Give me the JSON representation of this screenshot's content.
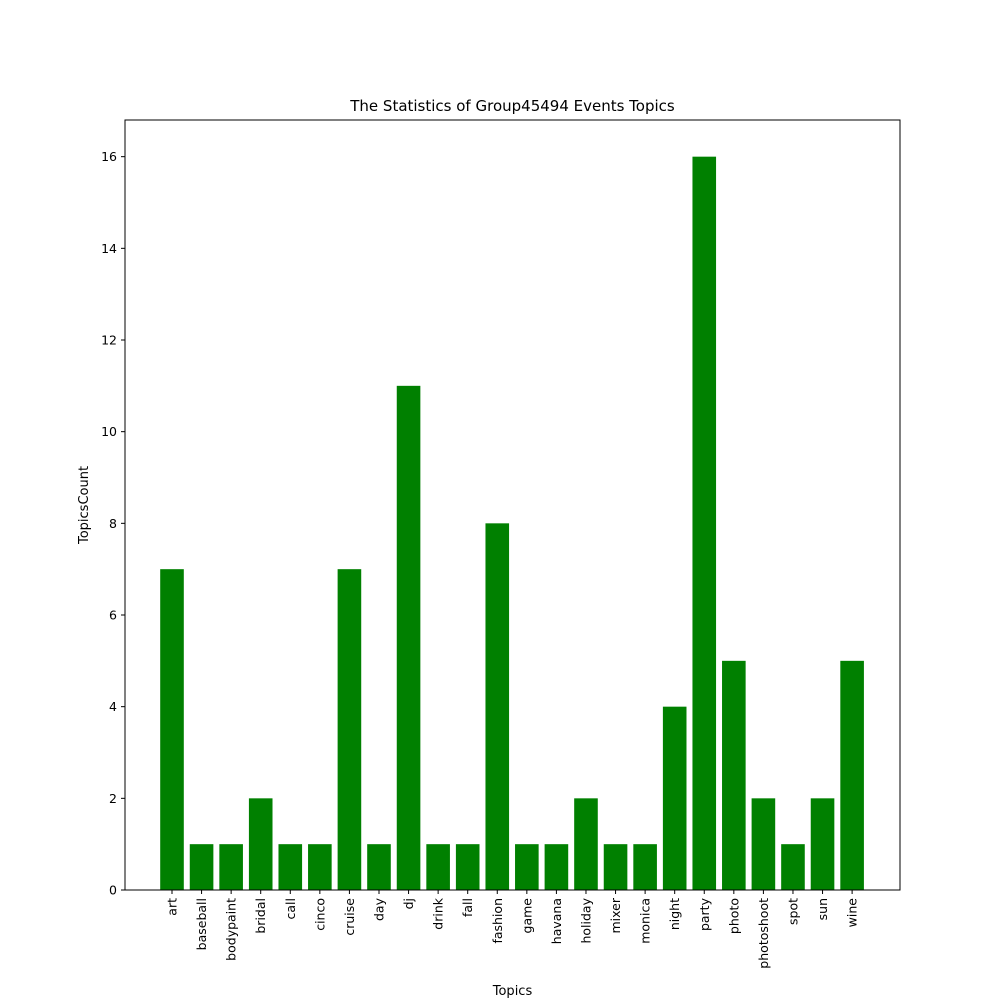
{
  "chart_data": {
    "type": "bar",
    "title": "The Statistics of Group45494 Events Topics",
    "xlabel": "Topics",
    "ylabel": "TopicsCount",
    "categories": [
      "art",
      "baseball",
      "bodypaint",
      "bridal",
      "call",
      "cinco",
      "cruise",
      "day",
      "dj",
      "drink",
      "fall",
      "fashion",
      "game",
      "havana",
      "holiday",
      "mixer",
      "monica",
      "night",
      "party",
      "photo",
      "photoshoot",
      "spot",
      "sun",
      "wine"
    ],
    "values": [
      7,
      1,
      1,
      2,
      1,
      1,
      7,
      1,
      11,
      1,
      1,
      8,
      1,
      1,
      2,
      1,
      1,
      4,
      16,
      5,
      2,
      1,
      2,
      5
    ],
    "yticks": [
      0,
      2,
      4,
      6,
      8,
      10,
      12,
      14,
      16
    ],
    "ylim": [
      0,
      16.8
    ],
    "bar_color": "#008000",
    "grid": false,
    "legend": "none"
  }
}
